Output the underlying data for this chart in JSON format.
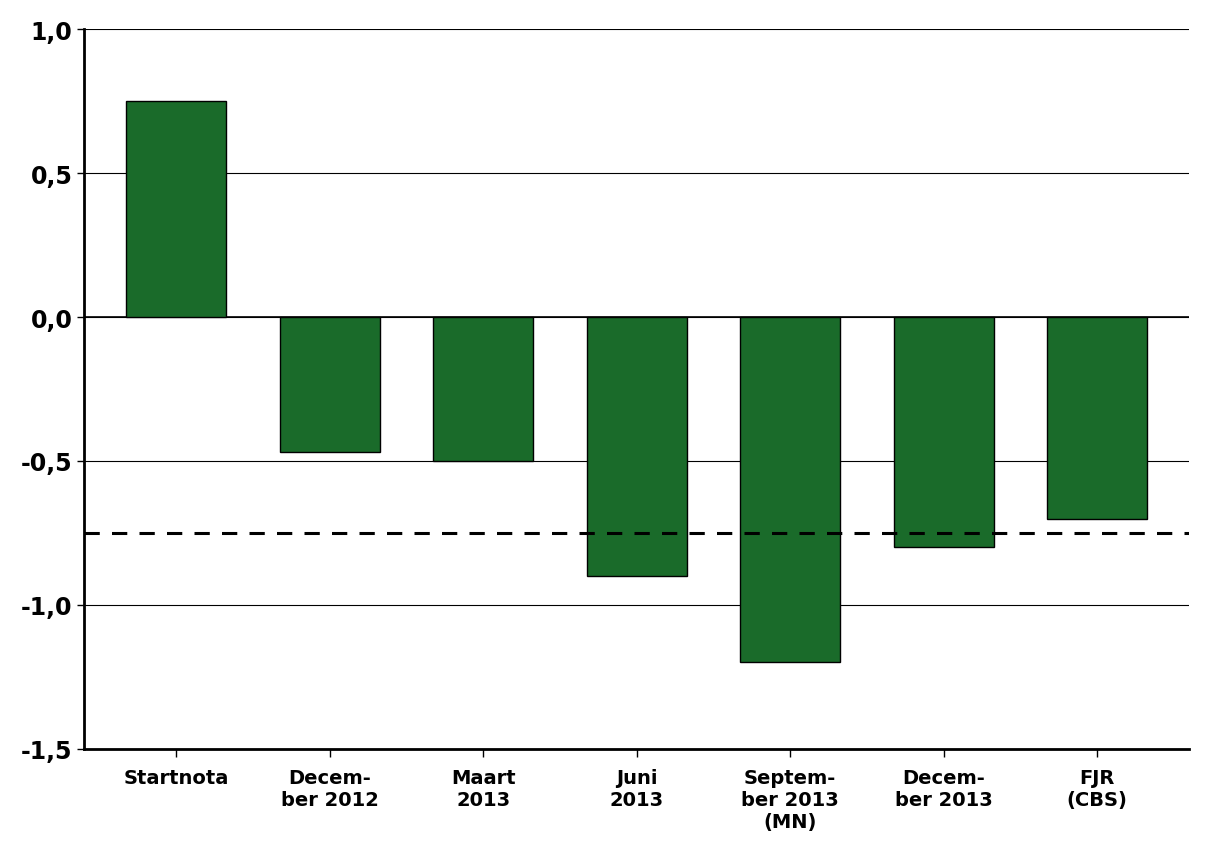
{
  "categories": [
    "Startnota",
    "Decem-\nber 2012",
    "Maart\n2013",
    "Juni\n2013",
    "Septem-\nber 2013\n(MN)",
    "Decem-\nber 2013",
    "FJR\n(CBS)"
  ],
  "values": [
    0.75,
    -0.47,
    -0.5,
    -0.9,
    -1.2,
    -0.8,
    -0.7
  ],
  "bar_color": "#1a6b2a",
  "bar_edge_color": "#000000",
  "dotted_line_y": -0.75,
  "ylim": [
    -1.5,
    1.0
  ],
  "yticks": [
    -1.5,
    -1.0,
    -0.5,
    0.0,
    0.5,
    1.0
  ],
  "ytick_labels": [
    "-1,5",
    "-1,0",
    "-0,5",
    "0,0",
    "0,5",
    "1,0"
  ],
  "background_color": "#ffffff",
  "bar_width": 0.65,
  "grid_color": "#000000",
  "spine_color": "#000000"
}
